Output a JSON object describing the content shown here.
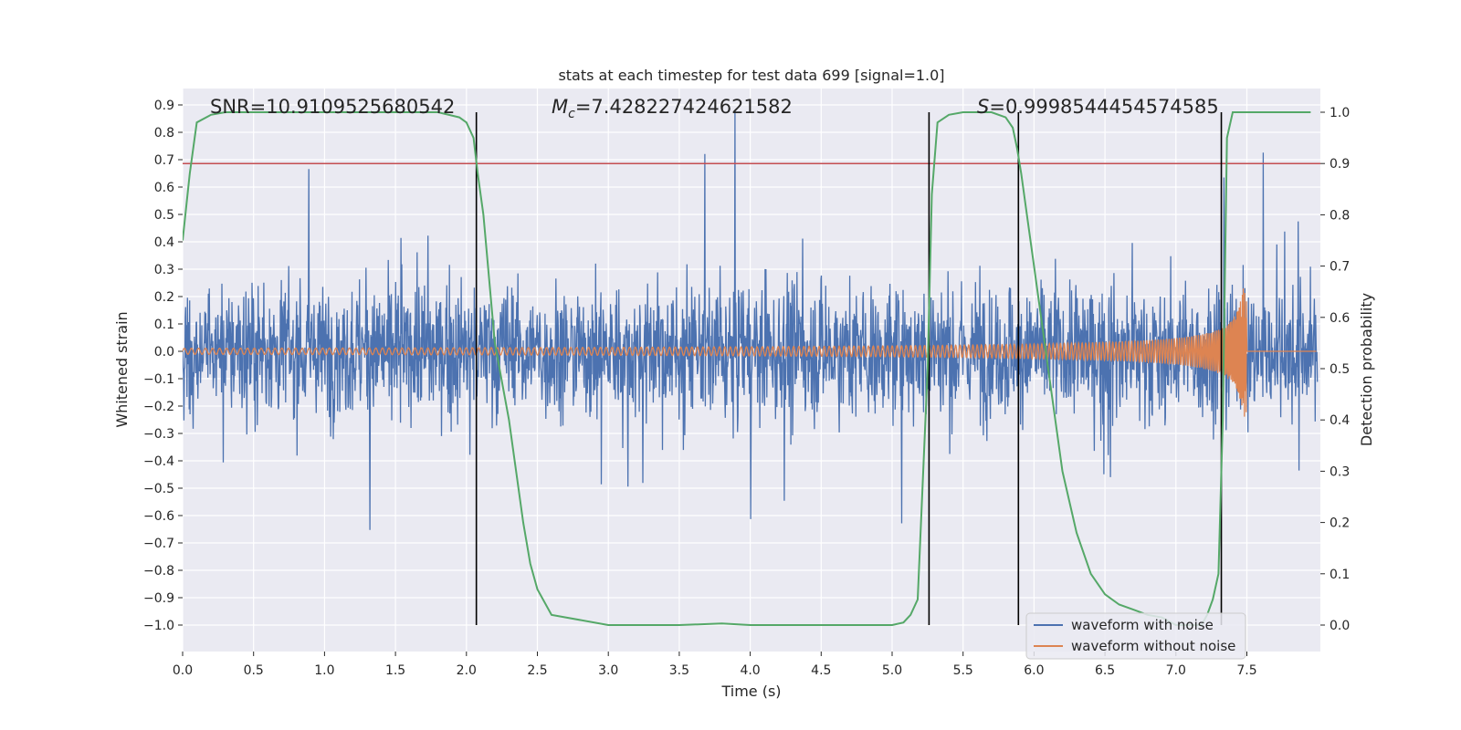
{
  "chart_data": {
    "type": "line",
    "title": "stats at each timestep for test data 699 [signal=1.0]",
    "xlabel": "Time (s)",
    "ylabel": "Whitened strain",
    "y2label": "Detection probability",
    "xlim": [
      0.0,
      8.0
    ],
    "ylim": [
      -1.09,
      0.98
    ],
    "y2lim": [
      -0.048,
      1.048
    ],
    "xticks": [
      0.0,
      0.5,
      1.0,
      1.5,
      2.0,
      2.5,
      3.0,
      3.5,
      4.0,
      4.5,
      5.0,
      5.5,
      6.0,
      6.5,
      7.0,
      7.5
    ],
    "xtick_labels": [
      "0.0",
      "0.5",
      "1.0",
      "1.5",
      "2.0",
      "2.5",
      "3.0",
      "3.5",
      "4.0",
      "4.5",
      "5.0",
      "5.5",
      "6.0",
      "6.5",
      "7.0",
      "7.5"
    ],
    "yticks": [
      0.9,
      0.8,
      0.7,
      0.6,
      0.5,
      0.4,
      0.3,
      0.2,
      0.1,
      0.0,
      -0.1,
      -0.2,
      -0.3,
      -0.4,
      -0.5,
      -0.6,
      -0.7,
      -0.8,
      -0.9,
      -1.0
    ],
    "ytick_labels": [
      "0.9",
      "0.8",
      "0.7",
      "0.6",
      "0.5",
      "0.4",
      "0.3",
      "0.2",
      "0.1",
      "0.0",
      "−0.1",
      "−0.2",
      "−0.3",
      "−0.4",
      "−0.5",
      "−0.6",
      "−0.7",
      "−0.8",
      "−0.9",
      "−1.0"
    ],
    "y2ticks": [
      1.0,
      0.9,
      0.8,
      0.7,
      0.6,
      0.5,
      0.4,
      0.3,
      0.2,
      0.1,
      0.0
    ],
    "y2tick_labels": [
      "1.0",
      "0.9",
      "0.8",
      "0.7",
      "0.6",
      "0.5",
      "0.4",
      "0.3",
      "0.2",
      "0.1",
      "0.0"
    ],
    "annotations": {
      "snr": "SNR=10.9109525680542",
      "mc_symbol": "M",
      "mc_sub": "c",
      "mc_value": "=7.428227424621582",
      "s_symbol": "S",
      "s_value": "=0.9998544454574585"
    },
    "threshold": 0.9,
    "vlines": [
      2.07,
      5.26,
      5.89,
      7.32
    ],
    "detection_probability": {
      "x": [
        0.0,
        0.05,
        0.1,
        0.2,
        0.3,
        0.5,
        1.0,
        1.5,
        1.8,
        1.95,
        2.0,
        2.05,
        2.08,
        2.12,
        2.2,
        2.3,
        2.4,
        2.45,
        2.5,
        2.6,
        3.0,
        3.5,
        3.8,
        4.0,
        4.5,
        5.0,
        5.08,
        5.13,
        5.18,
        5.25,
        5.28,
        5.32,
        5.4,
        5.5,
        5.7,
        5.8,
        5.85,
        5.88,
        5.91,
        5.95,
        6.0,
        6.1,
        6.2,
        6.3,
        6.4,
        6.5,
        6.6,
        6.7,
        6.8,
        6.9,
        7.0,
        7.1,
        7.18,
        7.22,
        7.26,
        7.3,
        7.33,
        7.36,
        7.4,
        7.45,
        7.5,
        7.6,
        7.8,
        7.95
      ],
      "y": [
        0.75,
        0.88,
        0.98,
        0.995,
        1.0,
        1.0,
        1.0,
        1.0,
        1.0,
        0.99,
        0.98,
        0.95,
        0.88,
        0.8,
        0.55,
        0.4,
        0.2,
        0.12,
        0.07,
        0.02,
        0.0,
        0.0,
        0.003,
        0.0,
        0.0,
        0.0,
        0.005,
        0.02,
        0.05,
        0.5,
        0.84,
        0.98,
        0.995,
        1.0,
        1.0,
        0.99,
        0.97,
        0.93,
        0.88,
        0.8,
        0.7,
        0.5,
        0.3,
        0.18,
        0.1,
        0.06,
        0.04,
        0.03,
        0.02,
        0.015,
        0.0,
        0.0,
        0.0,
        0.02,
        0.05,
        0.1,
        0.4,
        0.95,
        1.0,
        1.0,
        1.0,
        1.0,
        1.0,
        1.0
      ]
    },
    "series": [
      {
        "name": "waveform with noise",
        "color": "#4c72b0"
      },
      {
        "name": "waveform without noise",
        "color": "#dd8452"
      },
      {
        "name": "detection probability",
        "color": "#55a868"
      }
    ],
    "legend_position": "lower-right",
    "grid": true
  }
}
